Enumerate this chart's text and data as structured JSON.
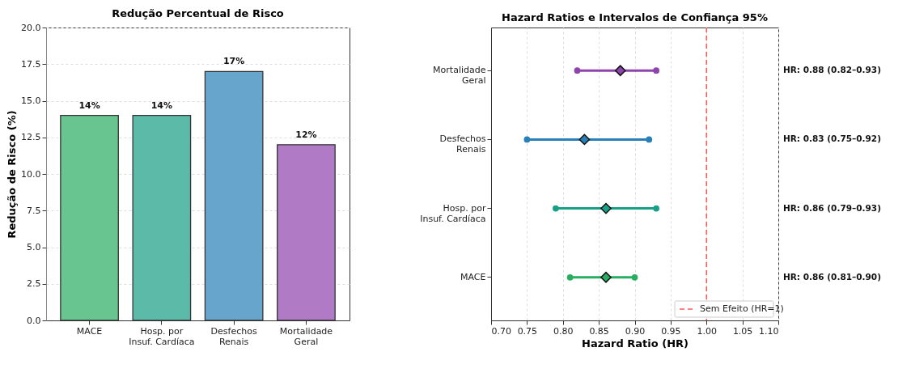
{
  "chart_data": [
    {
      "type": "bar",
      "title": "Redução Percentual de Risco",
      "ylabel": "Redução de Risco (%)",
      "categories": [
        "MACE",
        "Hosp. por\nInsuf. Cardíaca",
        "Desfechos\nRenais",
        "Mortalidade\nGeral"
      ],
      "values": [
        14,
        14,
        17,
        12
      ],
      "colors": [
        "#68c590",
        "#5bbaa8",
        "#68a5cc",
        "#b07bc4"
      ],
      "value_labels": [
        "14%",
        "14%",
        "17%",
        "12%"
      ],
      "ylim": [
        0,
        20
      ],
      "yticks": [
        {
          "value": 0,
          "label": "0.0"
        },
        {
          "value": 2.5,
          "label": "2.5"
        },
        {
          "value": 5,
          "label": "5.0"
        },
        {
          "value": 7.5,
          "label": "7.5"
        },
        {
          "value": 10,
          "label": "10.0"
        },
        {
          "value": 12.5,
          "label": "12.5"
        },
        {
          "value": 15,
          "label": "15.0"
        },
        {
          "value": 17.5,
          "label": "17.5"
        },
        {
          "value": 20,
          "label": "20.0"
        }
      ],
      "grid": "y"
    },
    {
      "type": "scatter",
      "orientation": "horizontal",
      "title": "Hazard Ratios e Intervalos de Confiança 95%",
      "xlabel": "Hazard Ratio (HR)",
      "categories": [
        "Mortalidade\nGeral",
        "Desfechos\nRenais",
        "Hosp. por\nInsuf. Cardíaca",
        "MACE"
      ],
      "values": [
        0.88,
        0.83,
        0.86,
        0.86
      ],
      "errors": [
        [
          0.82,
          0.93
        ],
        [
          0.75,
          0.92
        ],
        [
          0.79,
          0.93
        ],
        [
          0.81,
          0.9
        ]
      ],
      "colors": [
        "#8e44ad",
        "#2980b9",
        "#16a085",
        "#27ae60"
      ],
      "marker": "diamond",
      "xlim": [
        0.7,
        1.1
      ],
      "xticks": [
        {
          "value": 0.7,
          "label": "0.70"
        },
        {
          "value": 0.75,
          "label": "0.75"
        },
        {
          "value": 0.8,
          "label": "0.80"
        },
        {
          "value": 0.85,
          "label": "0.85"
        },
        {
          "value": 0.9,
          "label": "0.90"
        },
        {
          "value": 0.95,
          "label": "0.95"
        },
        {
          "value": 1.0,
          "label": "1.00"
        },
        {
          "value": 1.05,
          "label": "1.05"
        },
        {
          "value": 1.1,
          "label": "1.10"
        }
      ],
      "grid": "x",
      "ref_lines": [
        {
          "axis": "x",
          "value": 1.0,
          "label": "Sem Efeito (HR=1)",
          "color": "#ff5c5c",
          "line_style": "dashed"
        }
      ],
      "legend": "bottom right",
      "annotations": [
        "HR: 0.88 (0.82–0.93)",
        "HR: 0.83 (0.75–0.92)",
        "HR: 0.86 (0.79–0.93)",
        "HR: 0.86 (0.81–0.90)"
      ]
    }
  ]
}
